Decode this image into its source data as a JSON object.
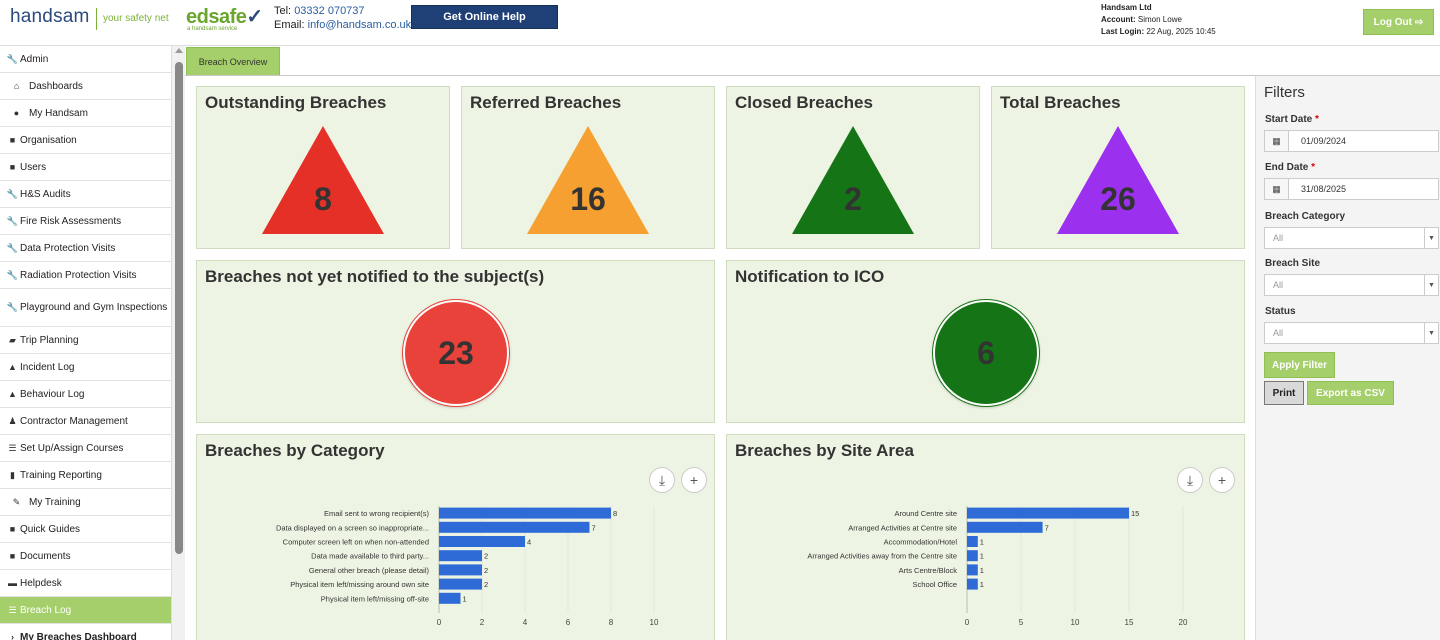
{
  "header": {
    "logo_handsam": "handsam",
    "logo_tagline": "your safety net",
    "logo_edsafe": "edsafe",
    "logo_edsafe_sub": "a handsam service",
    "tel_label": "Tel:",
    "tel_value": "03332 070737",
    "email_label": "Email:",
    "email_value": "info@handsam.co.uk",
    "help_button": "Get Online Help",
    "company": "Handsam Ltd",
    "account_label": "Account:",
    "account_value": "Simon Lowe",
    "last_login_label": "Last Login:",
    "last_login_value": "22 Aug, 2025 10:45",
    "logout_button": "Log Out"
  },
  "sidebar": {
    "items": [
      {
        "label": "Admin",
        "icon": "wrench-icon"
      },
      {
        "label": "Dashboards",
        "icon": "home-icon"
      },
      {
        "label": "My Handsam",
        "icon": "user-icon"
      },
      {
        "label": "Organisation",
        "icon": "briefcase-icon"
      },
      {
        "label": "Users",
        "icon": "briefcase-icon"
      },
      {
        "label": "H&S Audits",
        "icon": "wrench-icon"
      },
      {
        "label": "Fire Risk Assessments",
        "icon": "wrench-icon"
      },
      {
        "label": "Data Protection Visits",
        "icon": "wrench-icon"
      },
      {
        "label": "Radiation Protection Visits",
        "icon": "wrench-icon"
      },
      {
        "label": "Playground and Gym Inspections",
        "icon": "wrench-icon"
      },
      {
        "label": "Trip Planning",
        "icon": "car-icon"
      },
      {
        "label": "Incident Log",
        "icon": "warning-icon"
      },
      {
        "label": "Behaviour Log",
        "icon": "warning-icon"
      },
      {
        "label": "Contractor Management",
        "icon": "worker-icon"
      },
      {
        "label": "Set Up/Assign Courses",
        "icon": "list-icon"
      },
      {
        "label": "Training Reporting",
        "icon": "bar-chart-icon"
      },
      {
        "label": "My Training",
        "icon": "pencil-icon"
      },
      {
        "label": "Quick Guides",
        "icon": "book-icon"
      },
      {
        "label": "Documents",
        "icon": "briefcase-icon"
      },
      {
        "label": "Helpdesk",
        "icon": "keyboard-icon"
      },
      {
        "label": "Breach Log",
        "icon": "list-icon"
      },
      {
        "label": "My Breaches Dashboard",
        "icon": "chevron-right-icon"
      }
    ]
  },
  "tabs": [
    {
      "label": "Breach Overview"
    }
  ],
  "cards": {
    "outstanding": {
      "title": "Outstanding Breaches",
      "value": "8",
      "color": "#e53027"
    },
    "referred": {
      "title": "Referred Breaches",
      "value": "16",
      "color": "#f5a030"
    },
    "closed": {
      "title": "Closed Breaches",
      "value": "2",
      "color": "#157415"
    },
    "total": {
      "title": "Total Breaches",
      "value": "26",
      "color": "#9b30ee"
    },
    "not_notified": {
      "title": "Breaches not yet notified to the subject(s)",
      "value": "23",
      "color": "#e8423a"
    },
    "ico": {
      "title": "Notification to ICO",
      "value": "6",
      "color": "#157415"
    }
  },
  "chart_titles": {
    "category": "Breaches by Category",
    "site": "Breaches by Site Area"
  },
  "chart_data": [
    {
      "type": "bar",
      "orientation": "horizontal",
      "title": "Breaches by Category",
      "categories": [
        "Email sent to wrong recipient(s)",
        "Data displayed on a screen so inappropriate...",
        "Computer screen left on when non-attended",
        "Data made available to third party...",
        "General other breach (please detail)",
        "Physical item left/missing around own site",
        "Physical item left/missing off-site"
      ],
      "values": [
        8,
        7,
        4,
        2,
        2,
        2,
        1
      ],
      "xlim": [
        0,
        10
      ],
      "ticks": [
        0,
        2,
        4,
        6,
        8,
        10
      ],
      "bar_color": "#2e6bd6"
    },
    {
      "type": "bar",
      "orientation": "horizontal",
      "title": "Breaches by Site Area",
      "categories": [
        "Around Centre site",
        "Arranged Activities at Centre site",
        "Accommodation/Hotel",
        "Arranged Activities away from the Centre site",
        "Arts Centre/Block",
        "School Office"
      ],
      "values": [
        15,
        7,
        1,
        1,
        1,
        1
      ],
      "xlim": [
        0,
        20
      ],
      "ticks": [
        0,
        5,
        10,
        15,
        20
      ],
      "bar_color": "#2e6bd6"
    }
  ],
  "filters": {
    "title": "Filters",
    "start_date_label": "Start Date",
    "start_date_value": "01/09/2024",
    "end_date_label": "End Date",
    "end_date_value": "31/08/2025",
    "required_mark": "*",
    "category_label": "Breach Category",
    "category_value": "All",
    "site_label": "Breach Site",
    "site_value": "All",
    "status_label": "Status",
    "status_value": "All",
    "apply_button": "Apply Filter",
    "print_button": "Print",
    "export_button": "Export as CSV"
  }
}
